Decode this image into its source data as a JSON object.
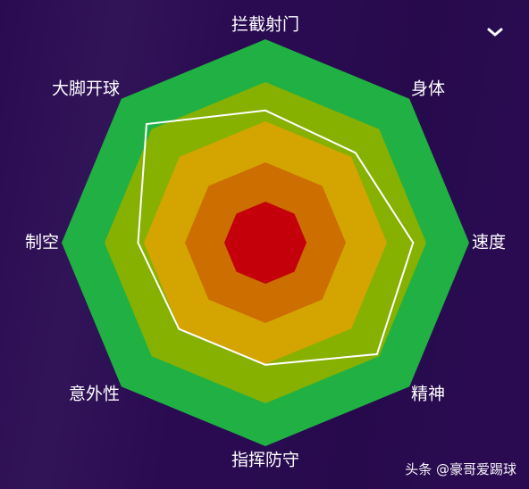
{
  "chart_data": {
    "type": "radar",
    "axes": [
      "拦截射门",
      "身体",
      "速度",
      "精神",
      "指挥防守",
      "意外性",
      "制空",
      "大脚开球"
    ],
    "levels": 4,
    "max": 4,
    "series": [
      {
        "values": [
          2.6,
          2.5,
          2.9,
          3.1,
          2.4,
          2.4,
          2.5,
          3.3
        ]
      }
    ],
    "band_colors": [
      "#c4000a",
      "#cc6e00",
      "#d4a400",
      "#86b100",
      "#21b043"
    ],
    "line_color": "#ffffff"
  },
  "watermark": "头条 @豪哥爱踢球",
  "menu_icon": "chevron-down-icon"
}
